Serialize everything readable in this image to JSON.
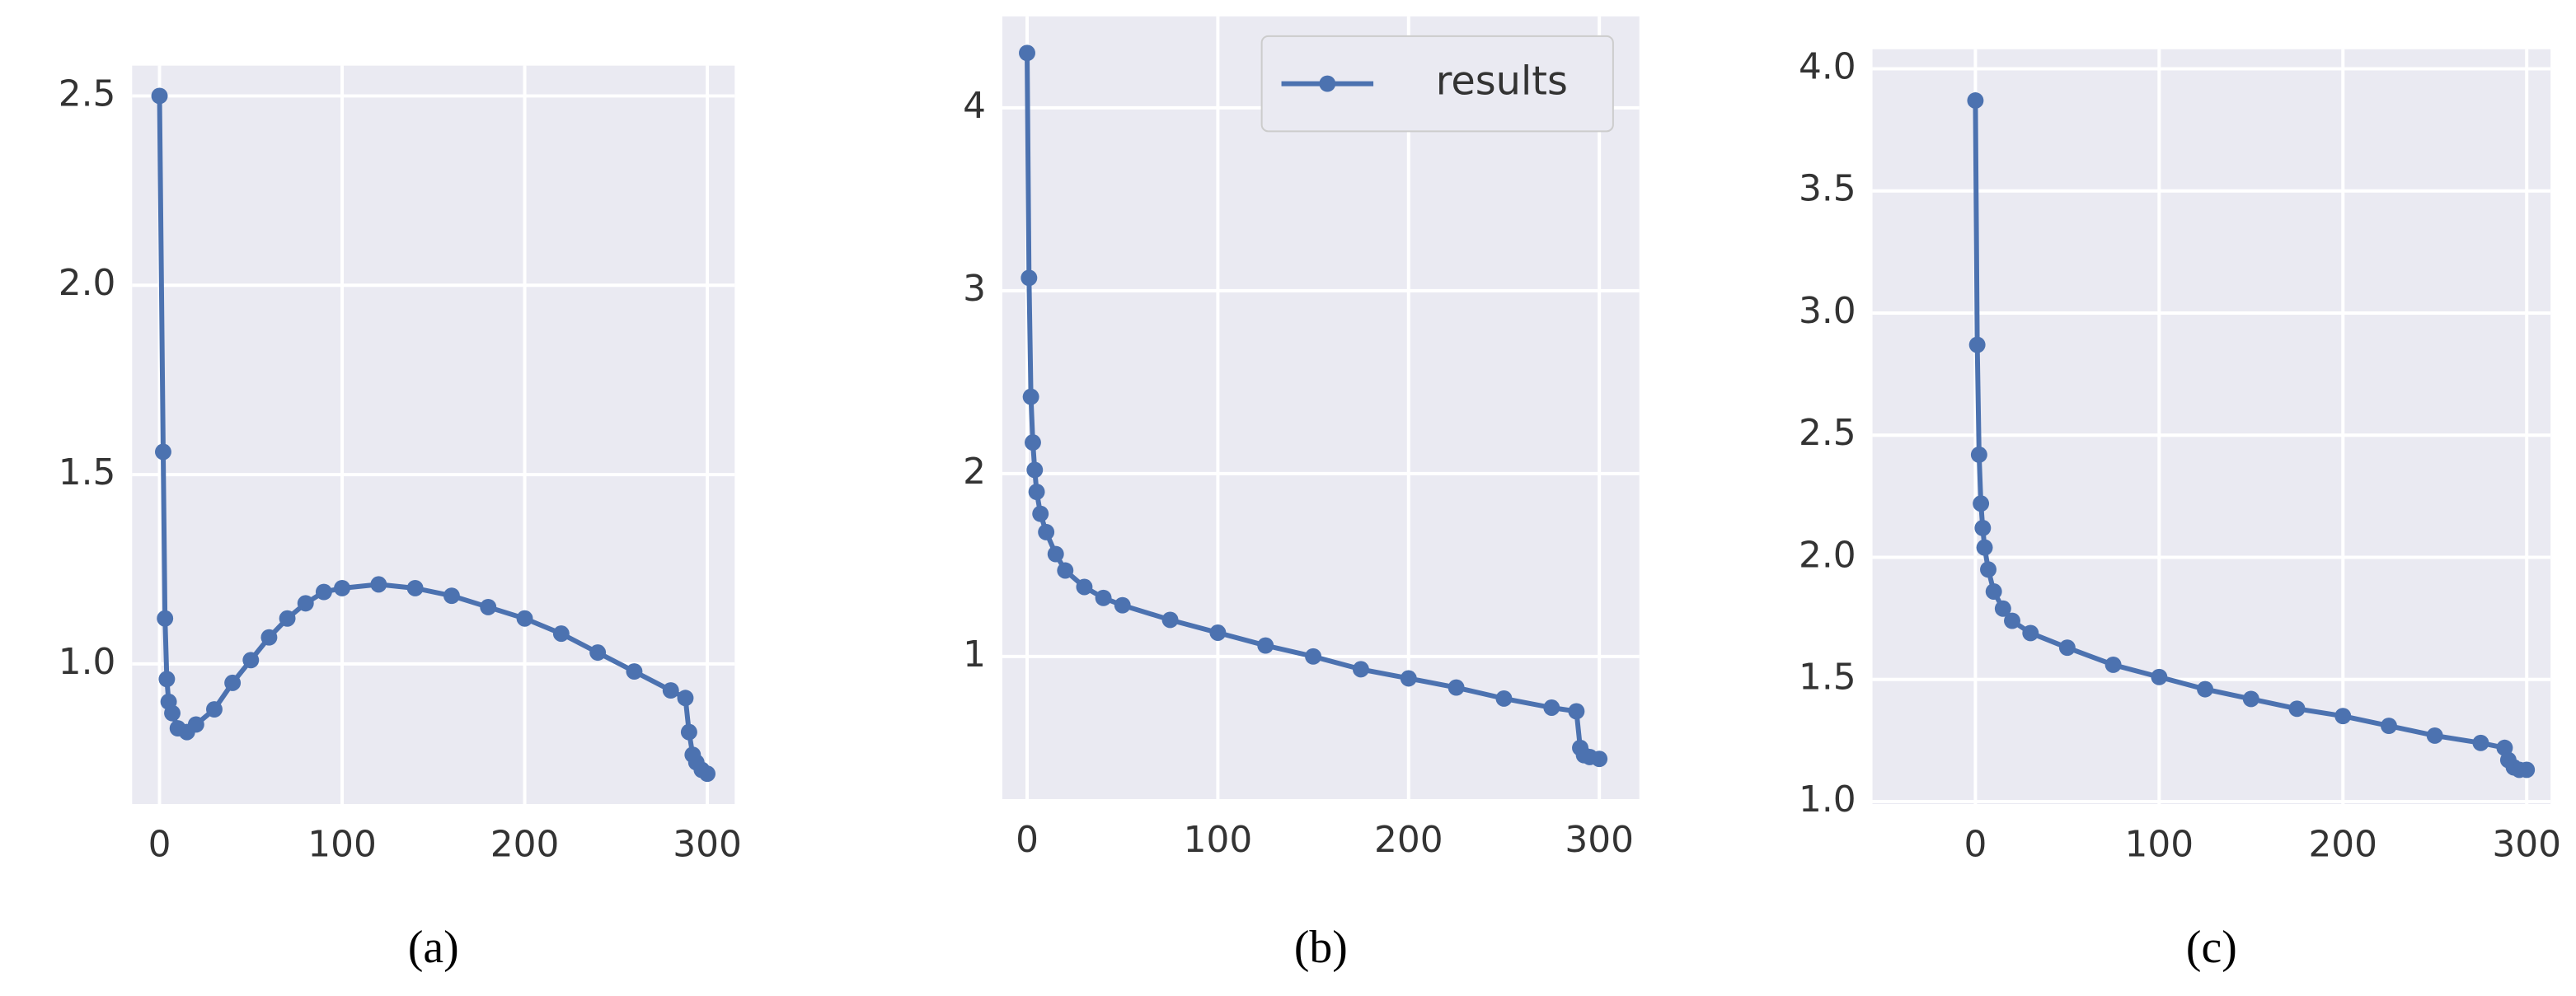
{
  "chart_data": [
    {
      "type": "line",
      "caption": "(a)",
      "x": [
        0,
        2,
        3,
        4,
        5,
        7,
        10,
        15,
        20,
        30,
        40,
        50,
        60,
        70,
        80,
        90,
        100,
        120,
        140,
        160,
        180,
        200,
        220,
        240,
        260,
        280,
        288,
        290,
        292,
        294,
        297,
        300
      ],
      "series": [
        {
          "color": "#4c72b0",
          "values": [
            2.5,
            1.56,
            1.12,
            0.96,
            0.9,
            0.87,
            0.83,
            0.82,
            0.84,
            0.88,
            0.95,
            1.01,
            1.07,
            1.12,
            1.16,
            1.19,
            1.2,
            1.21,
            1.2,
            1.18,
            1.15,
            1.12,
            1.08,
            1.03,
            0.98,
            0.93,
            0.91,
            0.82,
            0.76,
            0.74,
            0.72,
            0.71
          ]
        }
      ],
      "xlim": [
        -15,
        315
      ],
      "xticks": [
        0,
        100,
        200,
        300
      ],
      "ylim": [
        0.63,
        2.58
      ],
      "yticks": [
        {
          "value": 1,
          "label": "1.0"
        },
        1.5,
        {
          "value": 2,
          "label": "2.0"
        },
        2.5
      ],
      "grid": true
    },
    {
      "type": "line",
      "caption": "(b)",
      "x": [
        0,
        1,
        2,
        3,
        4,
        5,
        7,
        10,
        15,
        20,
        30,
        40,
        50,
        75,
        100,
        125,
        150,
        175,
        200,
        225,
        250,
        275,
        288,
        290,
        292,
        295,
        300
      ],
      "series": [
        {
          "name": "results",
          "color": "#4c72b0",
          "values": [
            4.3,
            3.07,
            2.42,
            2.17,
            2.02,
            1.9,
            1.78,
            1.68,
            1.56,
            1.47,
            1.38,
            1.32,
            1.28,
            1.2,
            1.13,
            1.06,
            1.0,
            0.93,
            0.88,
            0.83,
            0.77,
            0.72,
            0.7,
            0.5,
            0.46,
            0.45,
            0.44
          ]
        }
      ],
      "xlim": [
        -13,
        321
      ],
      "xticks": [
        0,
        100,
        200,
        300
      ],
      "ylim": [
        0.22,
        4.5
      ],
      "yticks": [
        1,
        2,
        3,
        4
      ],
      "grid": true,
      "legend": "upper right"
    },
    {
      "type": "line",
      "caption": "(c)",
      "x": [
        0,
        1,
        2,
        3,
        4,
        5,
        7,
        10,
        15,
        20,
        30,
        50,
        75,
        100,
        125,
        150,
        175,
        200,
        225,
        250,
        275,
        288,
        290,
        293,
        296,
        300
      ],
      "series": [
        {
          "color": "#4c72b0",
          "values": [
            3.87,
            2.87,
            2.42,
            2.22,
            2.12,
            2.04,
            1.95,
            1.86,
            1.79,
            1.74,
            1.69,
            1.63,
            1.56,
            1.51,
            1.46,
            1.42,
            1.38,
            1.35,
            1.31,
            1.27,
            1.24,
            1.22,
            1.17,
            1.14,
            1.13,
            1.13
          ]
        }
      ],
      "xlim": [
        -56,
        313
      ],
      "xticks": [
        0,
        100,
        200,
        300
      ],
      "ylim": [
        0.99,
        4.08
      ],
      "yticks": [
        {
          "value": 1,
          "label": "1.0"
        },
        1.5,
        {
          "value": 2,
          "label": "2.0"
        },
        2.5,
        {
          "value": 3,
          "label": "3.0"
        },
        3.5,
        {
          "value": 4,
          "label": "4.0"
        }
      ],
      "grid": true
    }
  ]
}
